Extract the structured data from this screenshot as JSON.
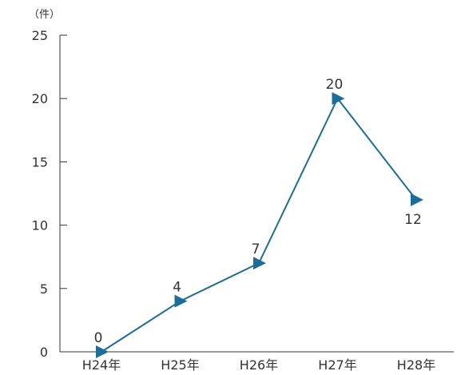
{
  "chart_data": {
    "type": "line",
    "categories": [
      "H24年",
      "H25年",
      "H26年",
      "H27年",
      "H28年"
    ],
    "series": [
      {
        "values": [
          0,
          4,
          7,
          20,
          12
        ]
      }
    ],
    "y_unit": "（件）",
    "ylim": [
      0,
      25
    ],
    "yticks": [
      "0",
      "5",
      "10",
      "15",
      "20",
      "25"
    ],
    "data_labels": [
      "0",
      "4",
      "7",
      "20",
      "12"
    ],
    "grid": false,
    "legend": "none",
    "line_color": "#1a6e9a",
    "marker": "triangle-right"
  }
}
